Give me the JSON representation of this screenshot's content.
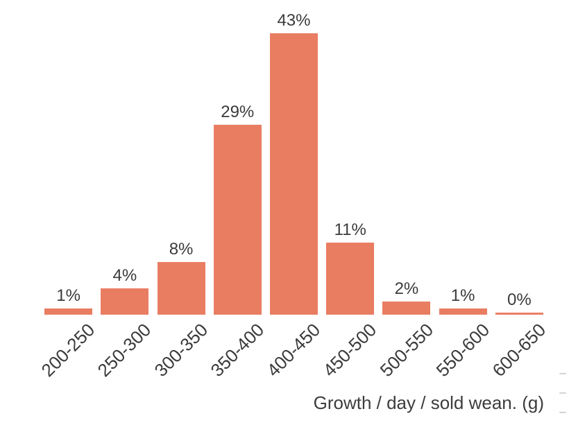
{
  "chart_data": {
    "type": "bar",
    "categories": [
      "200-250",
      "250-300",
      "300-350",
      "350-400",
      "400-450",
      "450-500",
      "500-550",
      "550-600",
      "600-650"
    ],
    "values": [
      1,
      4,
      8,
      29,
      43,
      11,
      2,
      1,
      0
    ],
    "value_labels": [
      "1%",
      "4%",
      "8%",
      "29%",
      "43%",
      "11%",
      "2%",
      "1%",
      "0%"
    ],
    "title": "",
    "xlabel": "Growth / day / sold wean. (g)",
    "ylabel": "",
    "ylim": [
      0,
      45
    ],
    "grid": false,
    "legend_position": "none",
    "bar_color": "#e97d62",
    "label_color": "#3b3b3b"
  }
}
